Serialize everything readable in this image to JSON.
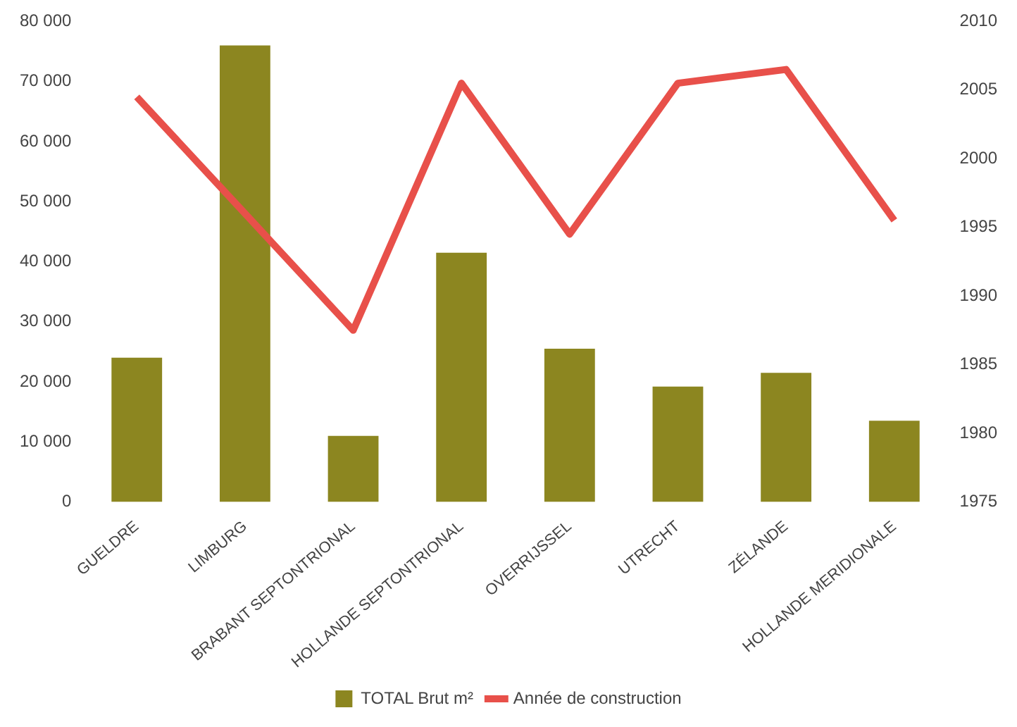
{
  "chart_data": {
    "type": "bar",
    "categories": [
      "GUELDRE",
      "LIMBURG",
      "BRABANT SEPTONTRIONAL",
      "HOLLANDE SEPTONTRIONAL",
      "OVERRIJSSEL",
      "UTRECHT",
      "ZÉLANDE",
      "HOLLANDE MERIDIONALE"
    ],
    "series": [
      {
        "name": "TOTAL Brut m²",
        "color": "#8c8620",
        "values": [
          24000,
          76000,
          11000,
          41500,
          25500,
          19200,
          21500,
          13500
        ]
      },
      {
        "name": "Année de construction",
        "type": "line",
        "axis": "y2",
        "color": "#e8504a",
        "values": [
          2004.5,
          1996,
          1987.5,
          2005.5,
          1994.5,
          2005.5,
          2006.5,
          1995.5
        ]
      }
    ],
    "ylim": [
      0,
      80000
    ],
    "yticks": [
      {
        "value": 0,
        "label": "0"
      },
      {
        "value": 10000,
        "label": "10 000"
      },
      {
        "value": 20000,
        "label": "20 000"
      },
      {
        "value": 30000,
        "label": "30 000"
      },
      {
        "value": 40000,
        "label": "40 000"
      },
      {
        "value": 50000,
        "label": "50 000"
      },
      {
        "value": 60000,
        "label": "60 000"
      },
      {
        "value": 70000,
        "label": "70 000"
      },
      {
        "value": 80000,
        "label": "80 000"
      }
    ],
    "y2lim": [
      1975,
      2010
    ],
    "y2ticks": [
      1975,
      1980,
      1985,
      1990,
      1995,
      2000,
      2005,
      2010
    ],
    "grid": false,
    "legend": "bottom",
    "marker": "none",
    "line_style": "solid"
  }
}
